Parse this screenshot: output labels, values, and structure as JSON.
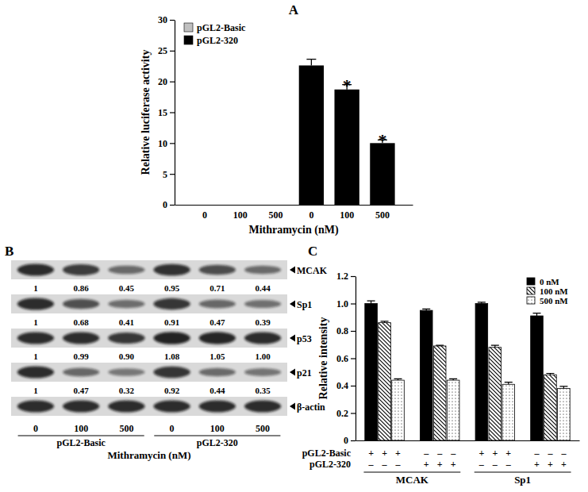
{
  "chart_data": [
    {
      "type": "bar",
      "title": "A",
      "x_label": "Mithramycin (nM)",
      "y_label": "Relative luciferase activity",
      "categories": [
        "0",
        "100",
        "500",
        "0",
        "100",
        "500"
      ],
      "series": [
        {
          "name": "pGL2-Basic",
          "color": "#c0c0c0",
          "values": [
            0,
            0,
            0,
            null,
            null,
            null
          ]
        },
        {
          "name": "pGL2-320",
          "color": "#000000",
          "values": [
            null,
            null,
            null,
            22.6,
            18.7,
            10.0
          ],
          "errors": [
            null,
            null,
            null,
            1.0,
            0.8,
            0.5
          ]
        }
      ],
      "annotations": [
        {
          "text": "*",
          "series": 1,
          "index": 4
        },
        {
          "text": "*",
          "series": 1,
          "index": 5
        }
      ],
      "ylim": [
        0,
        30
      ],
      "yticks": [
        0,
        5,
        10,
        15,
        20,
        25,
        30
      ],
      "legend": "upper-left"
    },
    {
      "type": "bar",
      "title": "C",
      "y_label": "Relative intensity",
      "categories": [
        null,
        null,
        null,
        null
      ],
      "groups": [
        "MCAK",
        "Sp1"
      ],
      "design": [
        {
          "label": "pGL2-Basic",
          "marks": [
            "+",
            "+",
            "+",
            "–",
            "–",
            "–",
            "+",
            "+",
            "+",
            "–",
            "–",
            "–"
          ]
        },
        {
          "label": "pGL2-320",
          "marks": [
            "–",
            "–",
            "–",
            "+",
            "+",
            "+",
            "–",
            "–",
            "–",
            "+",
            "+",
            "+"
          ]
        }
      ],
      "series": [
        {
          "name": "0 nM",
          "color": "#000000",
          "values": [
            1.0,
            0.95,
            1.0,
            0.91
          ],
          "errors": [
            0.02,
            0.01,
            0.01,
            0.02
          ]
        },
        {
          "name": "100 nM",
          "color": "#000000",
          "values": [
            0.86,
            0.69,
            0.68,
            0.48
          ],
          "errors": [
            0.01,
            0.005,
            0.015,
            0.01
          ]
        },
        {
          "name": "500 nM",
          "color": "#000000",
          "values": [
            0.44,
            0.44,
            0.41,
            0.38
          ],
          "errors": [
            0.01,
            0.01,
            0.015,
            0.015
          ]
        }
      ],
      "ylim": [
        0,
        1.2
      ],
      "yticks": [
        0,
        0.2,
        0.4,
        0.6,
        0.8,
        {
          "value": 1,
          "label": "1.0"
        },
        1.2
      ],
      "legend": "upper-right"
    }
  ],
  "blot": {
    "title": "B",
    "rows": [
      {
        "label": "MCAK",
        "values": [
          "1",
          "0.86",
          "0.45",
          "0.95",
          "0.71",
          "0.44"
        ]
      },
      {
        "label": "Sp1",
        "values": [
          "1",
          "0.68",
          "0.41",
          "0.91",
          "0.47",
          "0.39"
        ]
      },
      {
        "label": "p53",
        "values": [
          "1",
          "0.99",
          "0.90",
          "1.08",
          "1.05",
          "1.00"
        ]
      },
      {
        "label": "p21",
        "values": [
          "1",
          "0.47",
          "0.32",
          "0.92",
          "0.44",
          "0.35"
        ]
      },
      {
        "label": "β-actin"
      }
    ],
    "lanes": [
      "0",
      "100",
      "500",
      "0",
      "100",
      "500"
    ],
    "groups": [
      "pGL2-Basic",
      "pGL2-320"
    ],
    "x_label": "Mithramycin (nM)"
  }
}
